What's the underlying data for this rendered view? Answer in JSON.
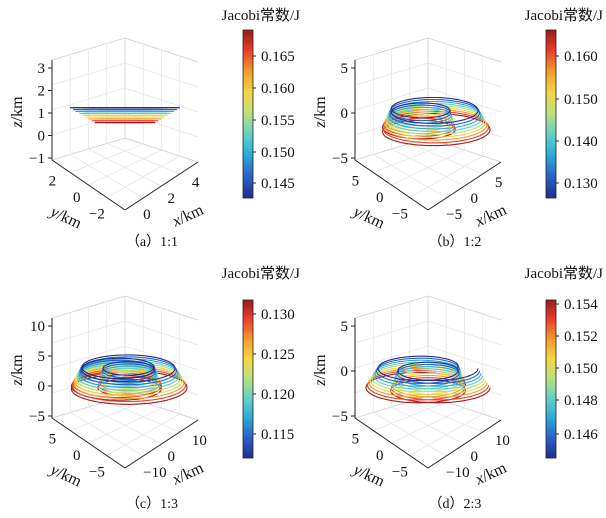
{
  "colors": {
    "colormap": [
      "#1f2f8f",
      "#2a5fc7",
      "#2aa7d8",
      "#5fd0c8",
      "#b8e07a",
      "#f2d648",
      "#f59b2e",
      "#e8402a",
      "#9e1a1a"
    ]
  },
  "chart_data": [
    {
      "type": "line3d",
      "caption": "（a）1:1",
      "colorbar": {
        "title": "Jacobi常数/J",
        "ticks": [
          "0.165",
          "0.160",
          "0.155",
          "0.150",
          "0.145"
        ],
        "range": [
          0.143,
          0.168
        ]
      },
      "axes": {
        "x": {
          "label": "x",
          "unit": "/km",
          "ticks": [
            "0",
            "2",
            "4"
          ]
        },
        "y": {
          "label": "y",
          "unit": "/km",
          "ticks": [
            "2",
            "0",
            "−2"
          ]
        },
        "z": {
          "label": "z",
          "unit": "/km",
          "ticks": [
            "3",
            "2",
            "1",
            "0",
            "−1"
          ]
        }
      },
      "orbits": {
        "count": 9,
        "family": "single-loop"
      }
    },
    {
      "type": "line3d",
      "caption": "（b）1:2",
      "colorbar": {
        "title": "Jacobi常数/J",
        "ticks": [
          "0.160",
          "0.150",
          "0.140",
          "0.130"
        ],
        "range": [
          0.122,
          0.165
        ]
      },
      "axes": {
        "x": {
          "label": "x",
          "unit": "/km",
          "ticks": [
            "−5",
            "0",
            "5"
          ]
        },
        "y": {
          "label": "y",
          "unit": "/km",
          "ticks": [
            "5",
            "0",
            "−5"
          ]
        },
        "z": {
          "label": "z",
          "unit": "/km",
          "ticks": [
            "5",
            "0",
            "−5"
          ]
        }
      },
      "orbits": {
        "count": 9,
        "family": "double-loop"
      }
    },
    {
      "type": "line3d",
      "caption": "（c）1:3",
      "colorbar": {
        "title": "Jacobi常数/J",
        "ticks": [
          "0.130",
          "0.125",
          "0.120",
          "0.115"
        ],
        "range": [
          0.115,
          0.133
        ]
      },
      "axes": {
        "x": {
          "label": "x",
          "unit": "/km",
          "ticks": [
            "−10",
            "0",
            "10"
          ]
        },
        "y": {
          "label": "y",
          "unit": "/km",
          "ticks": [
            "5",
            "0",
            "−5"
          ]
        },
        "z": {
          "label": "z",
          "unit": "/km",
          "ticks": [
            "10",
            "5",
            "0",
            "−5"
          ]
        }
      },
      "orbits": {
        "count": 9,
        "family": "triple-loop"
      }
    },
    {
      "type": "line3d",
      "caption": "（d）2:3",
      "colorbar": {
        "title": "Jacobi常数/J",
        "ticks": [
          "0.154",
          "0.152",
          "0.150",
          "0.148",
          "0.146"
        ],
        "range": [
          0.146,
          0.154
        ]
      },
      "axes": {
        "x": {
          "label": "x",
          "unit": "/km",
          "ticks": [
            "−10",
            "0",
            "10"
          ]
        },
        "y": {
          "label": "y",
          "unit": "/km",
          "ticks": [
            "5",
            "0",
            "−5"
          ]
        },
        "z": {
          "label": "z",
          "unit": "/km",
          "ticks": [
            "5",
            "0",
            "−5"
          ]
        }
      },
      "orbits": {
        "count": 9,
        "family": "2:3-loop"
      }
    }
  ]
}
